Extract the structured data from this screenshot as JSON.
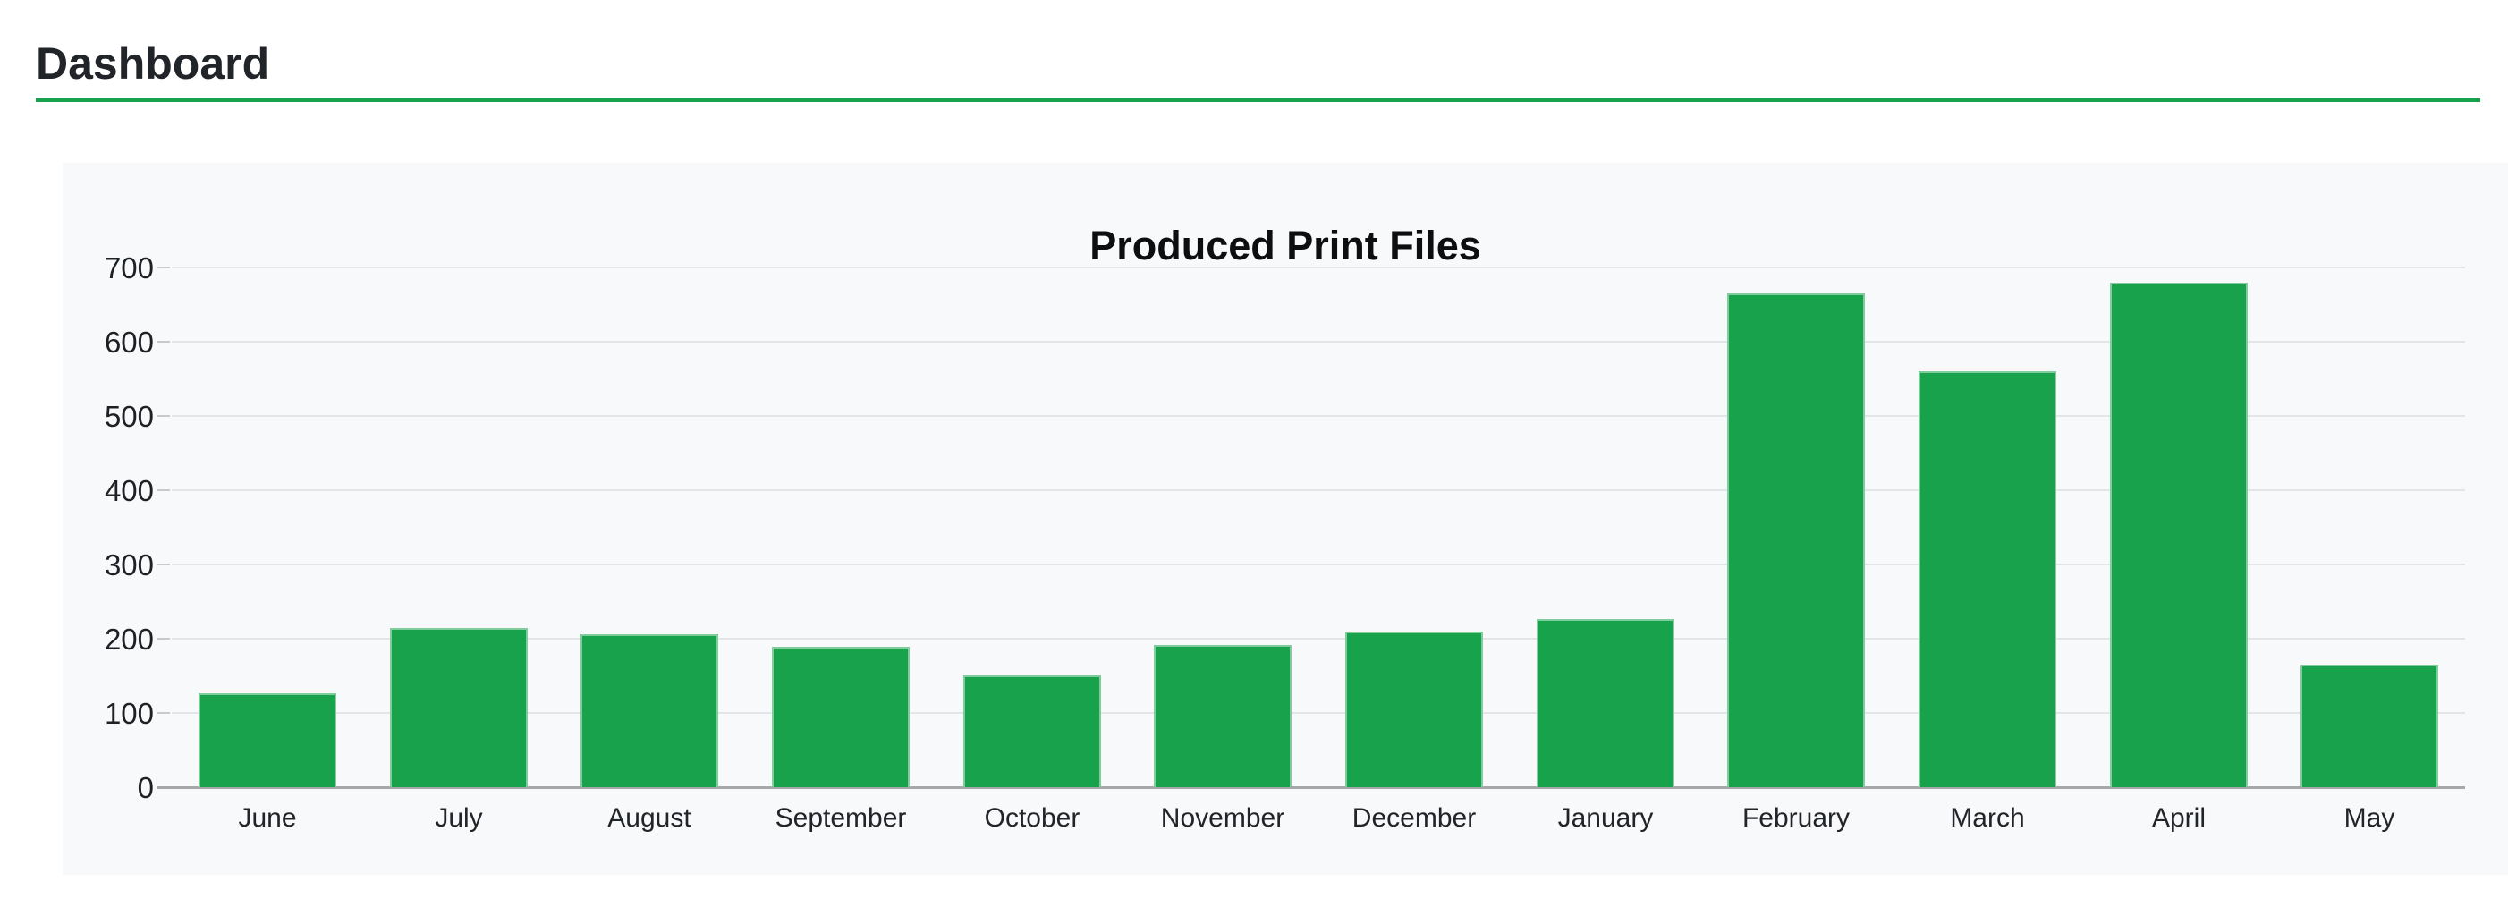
{
  "header": {
    "title": "Dashboard",
    "underline_color": "#17a24b"
  },
  "chart": {
    "title": "Produced Print Files",
    "card_background": "#f8f9fa",
    "bar_color": "#18a24c",
    "gridline_color": "#e3e5e8",
    "axis_color": "#a8a8a8"
  },
  "chart_data": {
    "type": "bar",
    "title": "Produced Print Files",
    "categories": [
      "June",
      "July",
      "August",
      "September",
      "October",
      "November",
      "December",
      "January",
      "February",
      "March",
      "April",
      "May"
    ],
    "values": [
      127,
      214,
      206,
      189,
      151,
      192,
      210,
      227,
      665,
      560,
      679,
      165
    ],
    "xlabel": "",
    "ylabel": "",
    "ylim": [
      0,
      700
    ],
    "yticks": [
      0,
      100,
      200,
      300,
      400,
      500,
      600,
      700
    ],
    "grid": true,
    "legend": false,
    "legend_position": "none",
    "bar_color": "#18a24c"
  }
}
